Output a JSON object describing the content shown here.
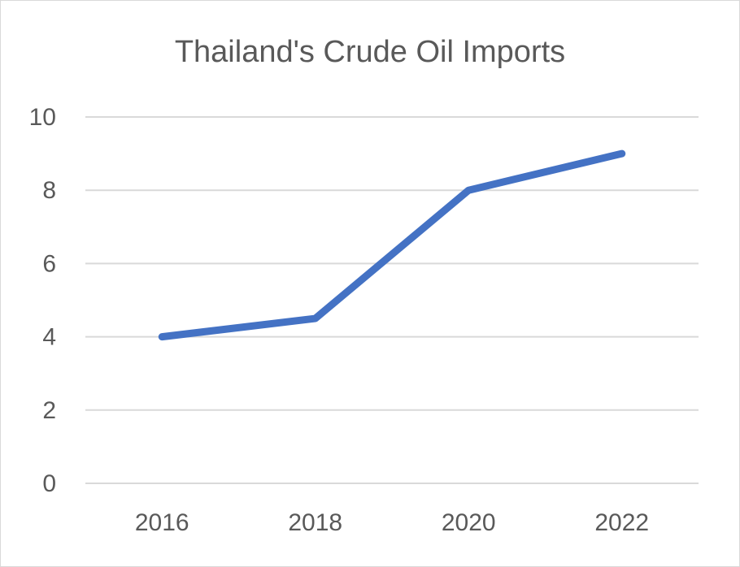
{
  "chart_data": {
    "type": "line",
    "title": "Thailand's Crude Oil Imports",
    "xlabel": "",
    "ylabel": "",
    "categories": [
      "2016",
      "2018",
      "2020",
      "2022"
    ],
    "series": [
      {
        "values": [
          4,
          4.5,
          8,
          9
        ],
        "color": "#4472c4"
      }
    ],
    "ylim": [
      0,
      10
    ],
    "yticks": [
      "0",
      "2",
      "4",
      "6",
      "8",
      "10"
    ],
    "grid": true,
    "legend": "none"
  }
}
